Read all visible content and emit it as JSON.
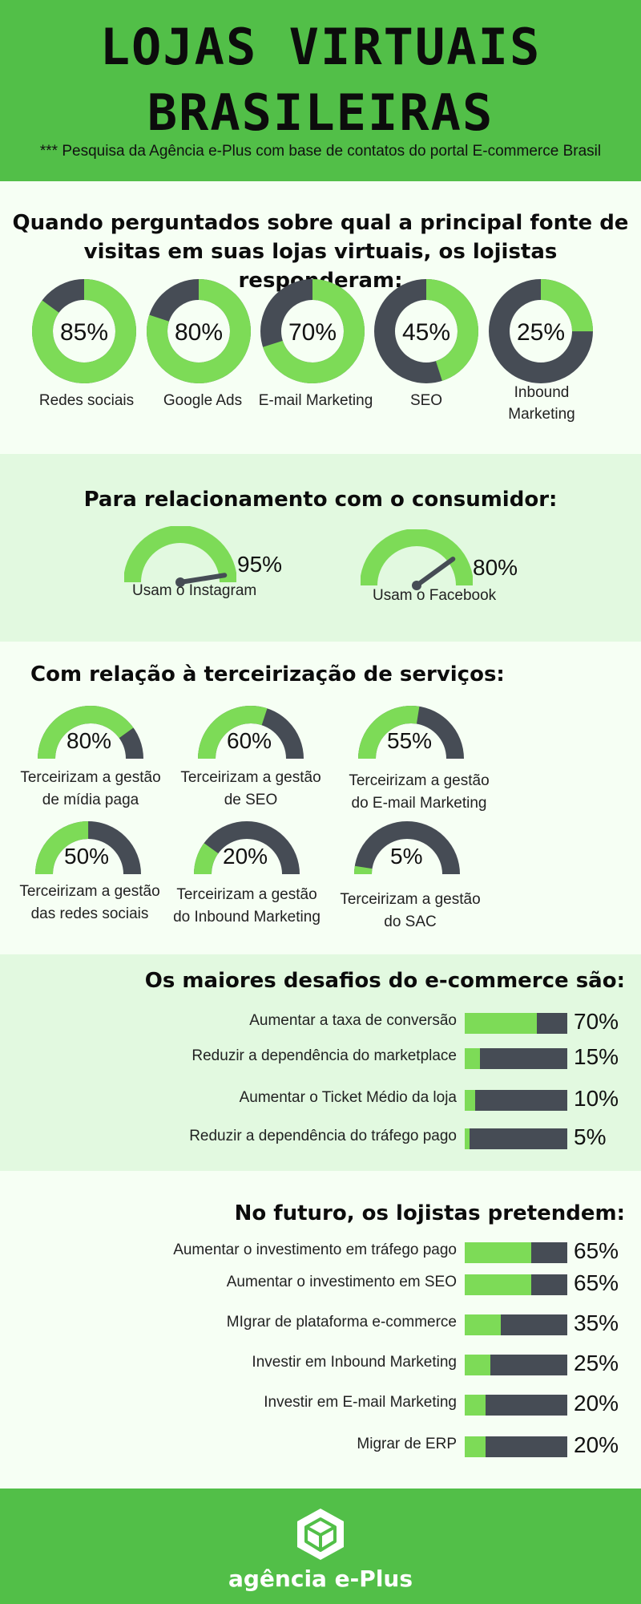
{
  "header": {
    "title_line1": "LOJAS VIRTUAIS",
    "title_line2": "BRASILEIRAS",
    "subtitle": "*** Pesquisa da Agência e-Plus com base de contatos do portal E-commerce Brasil"
  },
  "sources": {
    "heading_line1": "Quando perguntados sobre qual a principal fonte de",
    "heading_line2": "visitas em suas lojas virtuais, os lojistas responderam:",
    "items": [
      {
        "label": "Redes sociais",
        "pct_text": "85%",
        "value": 85
      },
      {
        "label": "Google Ads",
        "pct_text": "80%",
        "value": 80
      },
      {
        "label": "E-mail Marketing",
        "pct_text": "70%",
        "value": 70
      },
      {
        "label": "SEO",
        "pct_text": "45%",
        "value": 45
      },
      {
        "label_line1": "Inbound",
        "label_line2": "Marketing",
        "pct_text": "25%",
        "value": 25
      }
    ]
  },
  "relationship": {
    "heading": "Para relacionamento com o consumidor:",
    "items": [
      {
        "label": "Usam o Instagram",
        "pct_text": "95%",
        "value": 95
      },
      {
        "label": "Usam o Facebook",
        "pct_text": "80%",
        "value": 80
      }
    ]
  },
  "outsourcing": {
    "heading": "Com relação à terceirização de serviços:",
    "items": [
      {
        "line1": "Terceirizam a gestão",
        "line2": "de mídia paga",
        "pct_text": "80%",
        "value": 80
      },
      {
        "line1": "Terceirizam a gestão",
        "line2": "de SEO",
        "pct_text": "60%",
        "value": 60
      },
      {
        "line1": "Terceirizam a gestão",
        "line2": "do E-mail Marketing",
        "pct_text": "55%",
        "value": 55
      },
      {
        "line1": "Terceirizam a gestão",
        "line2": "das redes sociais",
        "pct_text": "50%",
        "value": 50
      },
      {
        "line1": "Terceirizam a gestão",
        "line2": "do Inbound Marketing",
        "pct_text": "20%",
        "value": 20
      },
      {
        "line1": "Terceirizam a gestão",
        "line2": "do SAC",
        "pct_text": "5%",
        "value": 5
      }
    ]
  },
  "challenges": {
    "heading": "Os maiores desafios do e-commerce são:",
    "items": [
      {
        "label": "Aumentar a taxa de conversão",
        "pct_text": "70%",
        "value": 70
      },
      {
        "label": "Reduzir a dependência do marketplace",
        "pct_text": "15%",
        "value": 15
      },
      {
        "label": "Aumentar o Ticket Médio da loja",
        "pct_text": "10%",
        "value": 10
      },
      {
        "label": "Reduzir a dependência do tráfego pago",
        "pct_text": "5%",
        "value": 5
      }
    ]
  },
  "future": {
    "heading": "No futuro, os lojistas pretendem:",
    "items": [
      {
        "label": "Aumentar o investimento em tráfego pago",
        "pct_text": "65%",
        "value": 65
      },
      {
        "label": "Aumentar o investimento em SEO",
        "pct_text": "65%",
        "value": 65
      },
      {
        "label": "MIgrar de plataforma e-commerce",
        "pct_text": "35%",
        "value": 35
      },
      {
        "label": "Investir em Inbound Marketing",
        "pct_text": "25%",
        "value": 25
      },
      {
        "label": "Investir em E-mail Marketing",
        "pct_text": "20%",
        "value": 20
      },
      {
        "label": "Migrar de ERP",
        "pct_text": "20%",
        "value": 20
      }
    ]
  },
  "footer": {
    "logo_text": "agência e-Plus",
    "logo_icon": "cube-hexagon-icon"
  },
  "colors": {
    "header_green": "#52bf48",
    "fill_green": "#7ddb57",
    "track_dark": "#464c55",
    "light_bg": "#f6fff4",
    "mint_bg": "#e2f9e0"
  }
}
